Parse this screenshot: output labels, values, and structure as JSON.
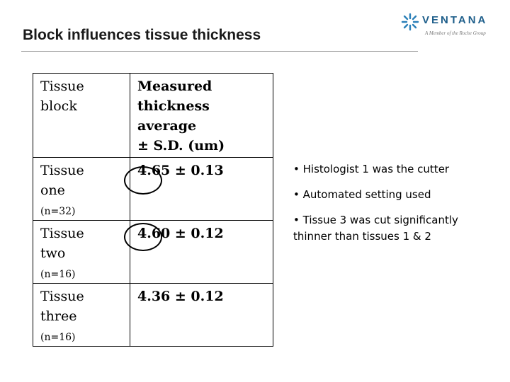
{
  "title": "Block influences tissue thickness",
  "logo": {
    "word": "VENTANA",
    "tagline": "A Member of the Roche Group",
    "colors": {
      "mark": "#2a7fb8",
      "word": "#1f5f8b"
    }
  },
  "table": {
    "header": {
      "col1_line1": "Tissue",
      "col1_line2": "block",
      "col2_line1": "Measured",
      "col2_line2": "thickness average",
      "col2_line3": "± S.D. (um)"
    },
    "rows": [
      {
        "name_line1": "Tissue",
        "name_line2": "one",
        "n": "(n=32)",
        "value": "4.65 ± 0.13"
      },
      {
        "name_line1": "Tissue",
        "name_line2": "two",
        "n": "(n=16)",
        "value": "4.60 ± 0.12"
      },
      {
        "name_line1": "Tissue",
        "name_line2": "three",
        "n": "(n=16)",
        "value": "4.36 ± 0.12"
      }
    ]
  },
  "bullets": [
    "• Histologist 1 was the cutter",
    "• Automated setting used",
    "• Tissue 3 was cut significantly thinner than tissues 1 & 2"
  ]
}
